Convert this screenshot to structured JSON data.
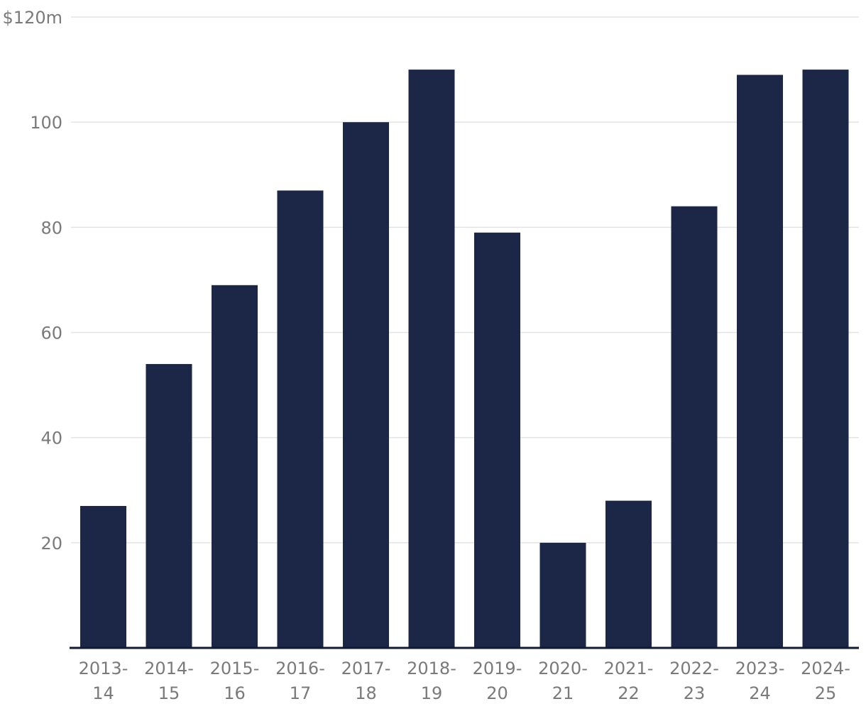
{
  "chart_data": {
    "type": "bar",
    "categories": [
      [
        "2013-",
        "14"
      ],
      [
        "2014-",
        "15"
      ],
      [
        "2015-",
        "16"
      ],
      [
        "2016-",
        "17"
      ],
      [
        "2017-",
        "18"
      ],
      [
        "2018-",
        "19"
      ],
      [
        "2019-",
        "20"
      ],
      [
        "2020-",
        "21"
      ],
      [
        "2021-",
        "22"
      ],
      [
        "2022-",
        "23"
      ],
      [
        "2023-",
        "24"
      ],
      [
        "2024-",
        "25"
      ]
    ],
    "values": [
      27,
      54,
      69,
      87,
      100,
      110,
      79,
      20,
      28,
      84,
      109,
      110
    ],
    "ylim": [
      0,
      120
    ],
    "yticks": [
      {
        "value": 120,
        "label": "$120m"
      },
      {
        "value": 100,
        "label": "100"
      },
      {
        "value": 80,
        "label": "80"
      },
      {
        "value": 60,
        "label": "60"
      },
      {
        "value": 40,
        "label": "40"
      },
      {
        "value": 20,
        "label": "20"
      }
    ],
    "grid": true,
    "bar_color": "#1c2748",
    "title": "",
    "xlabel": "",
    "ylabel": ""
  }
}
